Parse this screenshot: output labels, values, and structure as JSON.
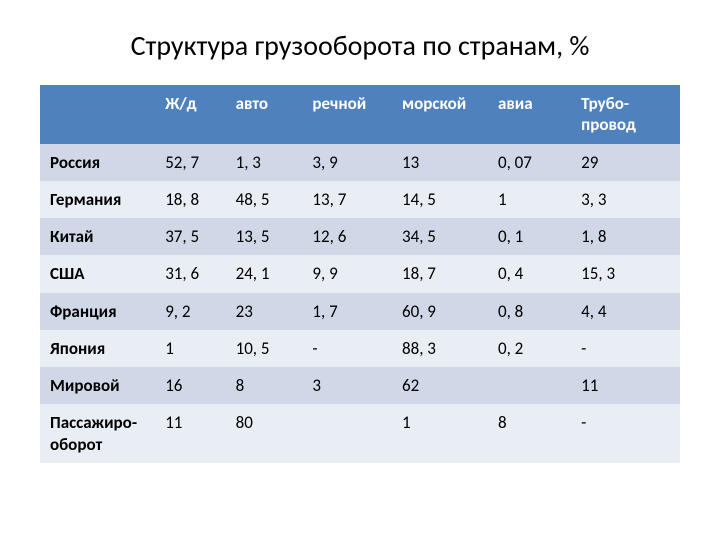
{
  "title": "Структура грузооборота по странам, %",
  "table": {
    "type": "table",
    "header_bg": "#4f81bd",
    "header_fg": "#ffffff",
    "band_light": "#d0d8e8",
    "band_dark": "#e9edf4",
    "font_family": "Calibri",
    "header_fontsize": 17,
    "cell_fontsize": 17,
    "columns": [
      "",
      "Ж/д",
      "авто",
      "речной",
      "морской",
      "авиа",
      "Трубо-провод"
    ],
    "rows": [
      {
        "label": "Россия",
        "cells": [
          "52, 7",
          "1, 3",
          "3, 9",
          "13",
          "0, 07",
          "29"
        ]
      },
      {
        "label": "Германия",
        "cells": [
          "18, 8",
          "48, 5",
          "13, 7",
          "14, 5",
          "1",
          "3, 3"
        ]
      },
      {
        "label": "Китай",
        "cells": [
          "37, 5",
          "13, 5",
          "12, 6",
          "34, 5",
          "0, 1",
          "1, 8"
        ]
      },
      {
        "label": "США",
        "cells": [
          "31, 6",
          "24, 1",
          "9, 9",
          "18, 7",
          "0, 4",
          "15, 3"
        ]
      },
      {
        "label": "Франция",
        "cells": [
          "9, 2",
          "23",
          "1, 7",
          "60, 9",
          "0, 8",
          "4, 4"
        ]
      },
      {
        "label": "Япония",
        "cells": [
          "1",
          "10, 5",
          "-",
          "88, 3",
          "0, 2",
          "-"
        ]
      },
      {
        "label": "Мировой",
        "cells": [
          "16",
          "8",
          "3",
          "62",
          "",
          "11"
        ]
      },
      {
        "label": "Пассажиро-оборот",
        "cells": [
          "11",
          "80",
          "",
          "1",
          "8",
          "-"
        ]
      }
    ]
  }
}
